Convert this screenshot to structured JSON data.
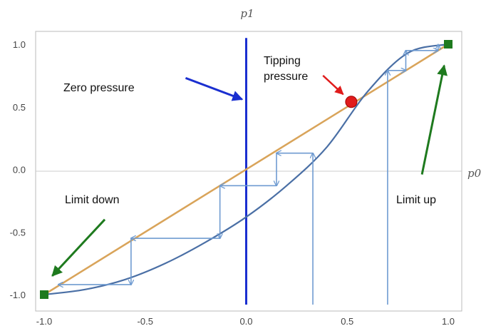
{
  "chart_data": {
    "type": "line",
    "title": "",
    "xlabel": "p0",
    "ylabel": "p1",
    "xlim": [
      -1.0,
      1.0
    ],
    "ylim": [
      -1.0,
      1.0
    ],
    "x_ticks": [
      "-1.0",
      "-0.5",
      "0.0",
      "0.5",
      "1.0"
    ],
    "y_ticks": [
      "1.0",
      "0.5",
      "0.0",
      "-0.5",
      "-1.0"
    ],
    "grid": false,
    "series": [
      {
        "name": "",
        "color": "#d9a45a",
        "kind": "identity line",
        "x": [
          -1.0,
          1.0
        ],
        "y": [
          -1.0,
          1.0
        ]
      },
      {
        "name": "",
        "color": "#4a6fa5",
        "kind": "response curve",
        "x": [
          -1.0,
          -0.8,
          -0.6,
          -0.4,
          -0.2,
          0.0,
          0.2,
          0.4,
          0.6,
          0.8,
          1.0
        ],
        "y": [
          -1.0,
          -0.96,
          -0.88,
          -0.75,
          -0.58,
          -0.38,
          -0.13,
          0.18,
          0.62,
          0.93,
          1.0
        ]
      },
      {
        "name": "",
        "color": "#1a2fd0",
        "kind": "vertical line",
        "x": [
          0.0,
          0.0
        ],
        "y": [
          -1.08,
          1.05
        ]
      }
    ],
    "cobweb_down": {
      "color": "#6f9bd1",
      "path": [
        [
          0.33,
          -1.08
        ],
        [
          0.33,
          0.13
        ],
        [
          0.15,
          0.13
        ],
        [
          0.15,
          -0.13
        ],
        [
          -0.13,
          -0.13
        ],
        [
          -0.13,
          -0.55
        ],
        [
          -0.57,
          -0.55
        ],
        [
          -0.57,
          -0.92
        ],
        [
          -0.93,
          -0.92
        ]
      ]
    },
    "cobweb_up": {
      "color": "#6f9bd1",
      "path": [
        [
          0.7,
          -1.08
        ],
        [
          0.7,
          0.79
        ],
        [
          0.79,
          0.79
        ],
        [
          0.79,
          0.95
        ],
        [
          0.95,
          0.95
        ],
        [
          0.95,
          0.997
        ]
      ]
    },
    "points": [
      {
        "label": "tipping",
        "x": 0.52,
        "y": 0.54,
        "color": "#e01b1b"
      },
      {
        "label": "limit-up",
        "x": 1.0,
        "y": 1.0,
        "color": "#1e7a1e"
      },
      {
        "label": "limit-down",
        "x": -1.0,
        "y": -1.0,
        "color": "#1e7a1e"
      }
    ],
    "annotations": [
      {
        "id": "zero-pressure",
        "text": "Zero pressure",
        "color": "#1a2fd0",
        "arrow_from": [
          -0.3,
          0.73
        ],
        "arrow_to": [
          -0.02,
          0.56
        ]
      },
      {
        "id": "tipping-pressure",
        "text_lines": [
          "Tipping",
          "pressure"
        ],
        "color": "#e01b1b",
        "arrow_from": [
          0.38,
          0.75
        ],
        "arrow_to": [
          0.48,
          0.6
        ]
      },
      {
        "id": "limit-down",
        "text": "Limit down",
        "color": "#1e7a1e",
        "arrow_from": [
          -0.7,
          -0.4
        ],
        "arrow_to": [
          -0.96,
          -0.85
        ]
      },
      {
        "id": "limit-up",
        "text": "Limit up",
        "color": "#1e7a1e",
        "arrow_from": [
          0.87,
          -0.04
        ],
        "arrow_to": [
          0.98,
          0.83
        ]
      }
    ]
  }
}
